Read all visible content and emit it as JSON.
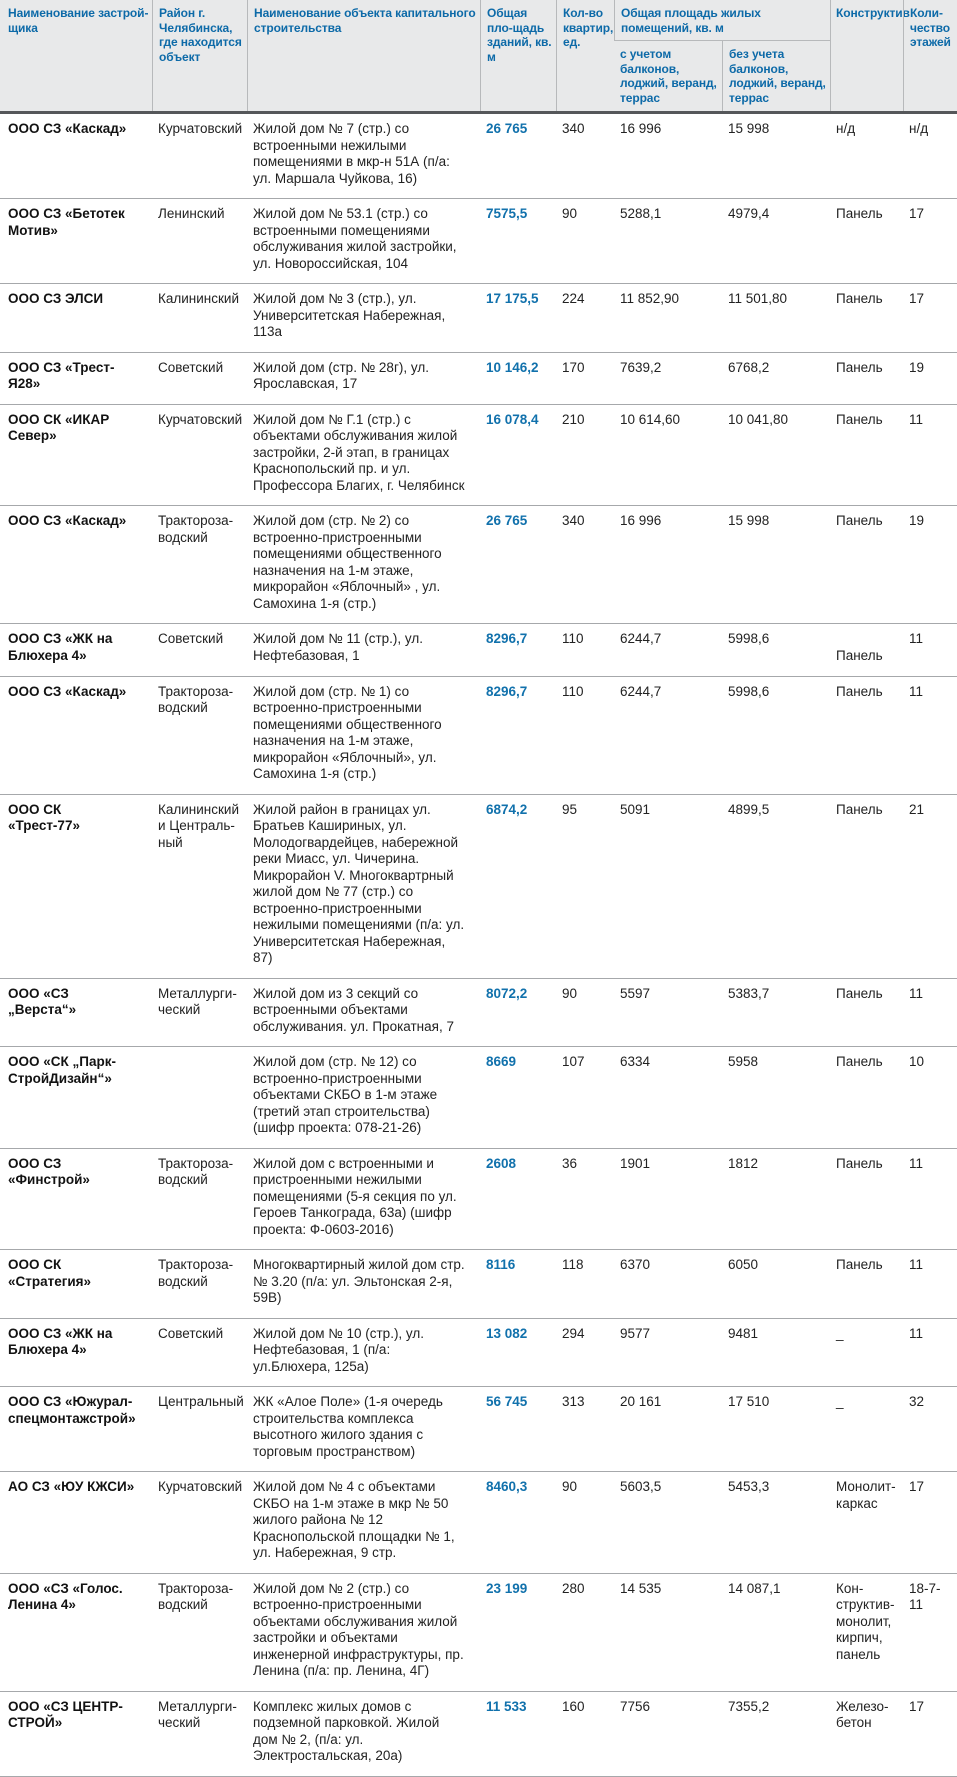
{
  "table": {
    "accent_color": "#0d6aa8",
    "header_bg_color": "#e8e9ea",
    "header": {
      "developer": "Наименование застрой-щика",
      "district": "Район г. Челябинска, где находится объект",
      "object": "Наименование объекта капитального строительства",
      "total_area": "Общая пло-щадь зданий, кв. м",
      "apartments": "Кол-во квартир, ед.",
      "living_area_group": "Общая площадь жилых помещений, кв. м",
      "with_balconies": "с учетом балконов, лоджий, веранд, террас",
      "without_balconies": "без учета балконов, лоджий, веранд, террас",
      "construction": "Конструктив",
      "floors": "Коли-чество этажей"
    },
    "rows": [
      {
        "developer": "ООО СЗ «Каскад»",
        "district": "Курчатовский",
        "object": "Жилой дом № 7 (стр.) со встроенными нежилыми помещениями в мкр-н 51А (п/а: ул. Маршала Чуйкова, 16)",
        "total_area": "26 765",
        "apartments": "340",
        "area_with": "16 996",
        "area_without": "15 998",
        "construction": "н/д",
        "floors": "н/д"
      },
      {
        "developer": "ООО СЗ «Бетотек Мотив»",
        "district": "Ленинский",
        "object": "Жилой дом № 53.1 (стр.) со встроенными помещениями обслуживания жилой застройки, ул. Новороссийская, 104",
        "total_area": "7575,5",
        "apartments": "90",
        "area_with": "5288,1",
        "area_without": "4979,4",
        "construction": "Панель",
        "floors": "17"
      },
      {
        "developer": "ООО СЗ ЭЛСИ",
        "district": "Калининский",
        "object": "Жилой дом № 3 (стр.), ул. Университетская Набережная, 113а",
        "total_area": "17 175,5",
        "apartments": "224",
        "area_with": "11 852,90",
        "area_without": "11 501,80",
        "construction": "Панель",
        "floors": "17"
      },
      {
        "developer": "ООО СЗ «Трест-Я28»",
        "district": "Советский",
        "object": "Жилой дом (стр. № 28г), ул. Ярославская, 17",
        "total_area": "10 146,2",
        "apartments": "170",
        "area_with": "7639,2",
        "area_without": "6768,2",
        "construction": "Панель",
        "floors": "19"
      },
      {
        "developer": "ООО СК «ИКАР Север»",
        "district": "Курчатовский",
        "object": "Жилой дом № Г.1 (стр.) с объектами обслуживания жилой застройки, 2-й этап, в границах Краснопольский пр. и ул. Профессора Благих, г. Челябинск",
        "total_area": "16 078,4",
        "apartments": "210",
        "area_with": "10 614,60",
        "area_without": "10 041,80",
        "construction": "Панель",
        "floors": "11"
      },
      {
        "developer": "ООО СЗ «Каскад»",
        "district": "Трактороза-водский",
        "object": "Жилой дом (стр. № 2) со встроенно-пристроенными помещениями общественного назначения на 1-м этаже, микрорайон «Яблочный» , ул. Самохина 1-я (стр.)",
        "total_area": "26 765",
        "apartments": "340",
        "area_with": "16 996",
        "area_without": "15 998",
        "construction": "Панель",
        "floors": "19"
      },
      {
        "developer": "ООО СЗ «ЖК на Блюхера 4»",
        "district": "Советский",
        "object": "Жилой дом № 11 (стр.), ул. Нефтебазовая, 1",
        "total_area": "8296,7",
        "apartments": "110",
        "area_with": "6244,7",
        "area_without": "5998,6",
        "construction": "Панель",
        "construction_offset": true,
        "floors": "11"
      },
      {
        "developer": "ООО СЗ «Каскад»",
        "district": "Трактороза-водский",
        "object": "Жилой дом (стр. № 1) со встроенно-пристроенными помещениями общественного назначения на 1-м этаже, микрорайон «Яблочный», ул. Самохина 1-я (стр.)",
        "total_area": "8296,7",
        "apartments": "110",
        "area_with": "6244,7",
        "area_without": "5998,6",
        "construction": "Панель",
        "floors": "11"
      },
      {
        "developer": "ООО СК «Трест-77»",
        "district": "Калининский и Централь-ный",
        "object": "Жилой район в границах ул. Братьев Кашириных, ул. Молодогвардейцев, набережной реки Миасс, ул. Чичерина. Микрорайон V. Многоквартрный жилой дом № 77 (стр.) со встроенно-пристроенными нежилыми помещениями (п/а: ул. Университетская Набережная, 87)",
        "total_area": "6874,2",
        "apartments": "95",
        "area_with": "5091",
        "area_without": "4899,5",
        "construction": "Панель",
        "floors": "21"
      },
      {
        "developer": "ООО «СЗ „Верста“»",
        "district": "Металлурги-ческий",
        "object": "Жилой дом из 3 секций со встроенными объектами обслуживания. ул. Прокатная, 7",
        "total_area": "8072,2",
        "apartments": "90",
        "area_with": "5597",
        "area_without": "5383,7",
        "construction": "Панель",
        "floors": "11"
      },
      {
        "developer": "ООО «СК „Парк-СтройДизайн“»",
        "district": "",
        "object": "Жилой дом (стр. № 12) со встроенно-пристроенными объектами СКБО в 1-м этаже (третий этап строительства) (шифр проекта: 078-21-26)",
        "total_area": "8669",
        "apartments": "107",
        "area_with": "6334",
        "area_without": "5958",
        "construction": "Панель",
        "floors": "10"
      },
      {
        "developer": "ООО СЗ «Финстрой»",
        "district": "Трактороза-водский",
        "object": "Жилой дом с встроенными и пристроенными нежилыми помещениями (5-я секция по ул. Героев Танкограда, 63а) (шифр проекта: Ф-0603-2016)",
        "total_area": "2608",
        "apartments": "36",
        "area_with": "1901",
        "area_without": "1812",
        "construction": "Панель",
        "floors": "11"
      },
      {
        "developer": "ООО СК «Стратегия»",
        "district": "Трактороза-водский",
        "object": "Многоквартирный жилой дом стр. № 3.20 (п/а: ул. Эльтонская 2-я, 59В)",
        "total_area": "8116",
        "apartments": "118",
        "area_with": "6370",
        "area_without": "6050",
        "construction": "Панель",
        "floors": "11"
      },
      {
        "developer": "ООО СЗ «ЖК на Блюхера 4»",
        "district": "Советский",
        "object": "Жилой дом № 10 (стр.), ул. Нефтебазовая, 1 (п/а: ул.Блюхера, 125а)",
        "total_area": "13 082",
        "apartments": "294",
        "area_with": "9577",
        "area_without": "9481",
        "construction": "_",
        "floors": "11"
      },
      {
        "developer": "ООО СЗ «Южурал-спецмонтажстрой»",
        "district": "Центральный",
        "object": "ЖК «Алое Поле» (1-я очередь строительства комплекса высотного жилого здания с торговым пространством)",
        "total_area": "56 745",
        "apartments": "313",
        "area_with": "20 161",
        "area_without": "17 510",
        "construction": "_",
        "floors": "32"
      },
      {
        "developer": "АО СЗ «ЮУ КЖСИ»",
        "district": "Курчатовский",
        "object": "Жилой дом № 4 с объектами СКБО на 1-м этаже в мкр № 50 жилого района № 12 Краснопольской площадки № 1, ул. Набережная, 9 стр.",
        "total_area": "8460,3",
        "apartments": "90",
        "area_with": "5603,5",
        "area_without": "5453,3",
        "construction": "Монолит-каркас",
        "floors": "17"
      },
      {
        "developer": "ООО «СЗ «Голос. Ленина 4»",
        "district": "Трактороза-водский",
        "object": "Жилой дом № 2 (стр.) со встроенно-пристроенными объектами обслуживания жилой застройки и объектами инженерной инфраструктуры, пр. Ленина (п/а: пр. Ленина, 4Г)",
        "total_area": "23 199",
        "apartments": "280",
        "area_with": "14 535",
        "area_without": "14 087,1",
        "construction": "Кон-структив-монолит, кирпич, панель",
        "floors": "18-7-11"
      },
      {
        "developer": "ООО «СЗ ЦЕНТР-СТРОЙ»",
        "district": "Металлурги-ческий",
        "object": "Комплекс жилых домов с подземной парковкой. Жилой дом № 2, (п/а: ул. Электростальская, 20а)",
        "total_area": "11 533",
        "apartments": "160",
        "area_with": "7756",
        "area_without": "7355,2",
        "construction": "Железо-бетон",
        "floors": "17"
      }
    ]
  }
}
